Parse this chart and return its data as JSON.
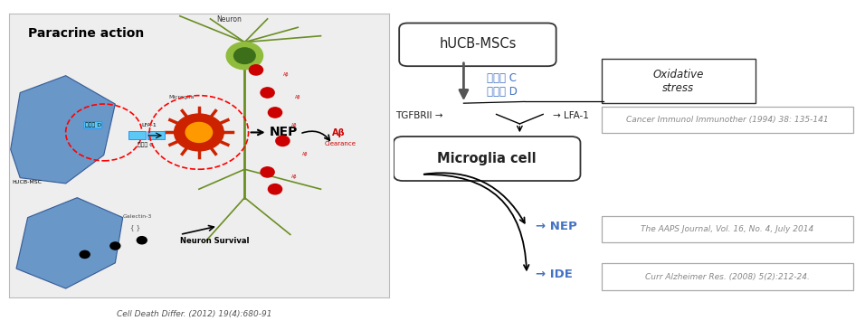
{
  "bg_color": "#f5f5f5",
  "left_panel": {
    "title": "Paracrine action",
    "citation": "Cell Death Differ. (2012) 19(4):680-91"
  },
  "right_panel": {
    "box1_text": "hUCB-MSCs",
    "arrow1_labels": [
      "단백질 C",
      "단백질 D"
    ],
    "box2_text": "Oxidative\nstress",
    "tgf_text": "TGFBRII →",
    "lfa_text": "→ LFA-1",
    "ref1_text": "Cancer Immunol Immunother (1994) 38: 135-141",
    "box3_text": "Microglia cell",
    "nep_text": "NEP",
    "ide_text": "IDE",
    "ref2_text": "The AAPS Journal, Vol. 16, No. 4, July 2014",
    "ref3_text": "Curr Alzheimer Res. (2008) 5(2):212-24."
  },
  "blue_color": "#4472C4",
  "text_color": "#222222",
  "ref_color": "#888888"
}
